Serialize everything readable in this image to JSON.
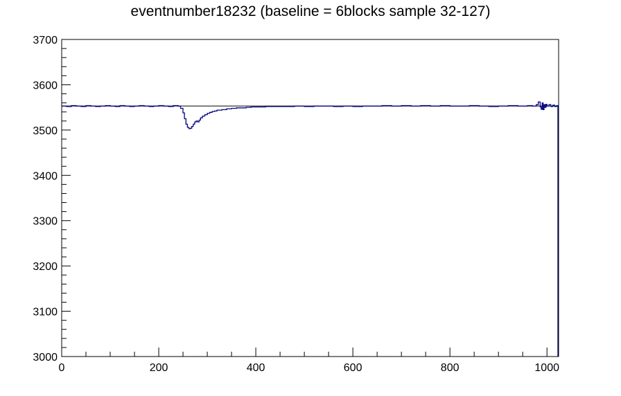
{
  "chart_data": {
    "type": "line",
    "title": "eventnumber18232 (baseline = 6blocks sample 32-127)",
    "xlabel": "",
    "ylabel": "",
    "xlim": [
      0,
      1024
    ],
    "ylim": [
      3000,
      3700
    ],
    "x_ticks": [
      0,
      200,
      400,
      600,
      800,
      1000
    ],
    "y_ticks": [
      3000,
      3100,
      3200,
      3300,
      3400,
      3500,
      3600,
      3700
    ],
    "x_tick_labels": [
      "0",
      "200",
      "400",
      "600",
      "800",
      "1000"
    ],
    "y_tick_labels": [
      "3000",
      "3100",
      "3200",
      "3300",
      "3400",
      "3500",
      "3600",
      "3700"
    ],
    "grid": false,
    "baseline": {
      "value": 3553,
      "color": "#000000"
    },
    "series": [
      {
        "color": "#000080",
        "x": [
          0,
          10,
          20,
          30,
          40,
          50,
          60,
          70,
          80,
          90,
          100,
          110,
          120,
          130,
          140,
          150,
          160,
          170,
          180,
          190,
          200,
          210,
          220,
          230,
          240,
          245,
          250,
          253,
          256,
          259,
          262,
          265,
          268,
          271,
          274,
          277,
          280,
          283,
          286,
          290,
          295,
          300,
          305,
          310,
          315,
          320,
          330,
          340,
          350,
          360,
          370,
          380,
          390,
          400,
          420,
          440,
          460,
          480,
          500,
          520,
          540,
          560,
          580,
          600,
          620,
          640,
          660,
          680,
          700,
          720,
          740,
          760,
          780,
          800,
          820,
          840,
          860,
          880,
          900,
          920,
          940,
          960,
          970,
          978,
          982,
          986,
          988,
          990,
          992,
          994,
          996,
          998,
          1000,
          1004,
          1008,
          1012,
          1016,
          1020,
          1023
        ],
        "values": [
          3553,
          3552,
          3554,
          3553,
          3552,
          3554,
          3553,
          3552,
          3553,
          3554,
          3553,
          3552,
          3554,
          3553,
          3552,
          3553,
          3554,
          3553,
          3552,
          3553,
          3554,
          3553,
          3552,
          3554,
          3553,
          3548,
          3538,
          3525,
          3513,
          3506,
          3503,
          3504,
          3508,
          3513,
          3518,
          3520,
          3518,
          3522,
          3527,
          3531,
          3534,
          3537,
          3539,
          3541,
          3542,
          3544,
          3545,
          3547,
          3548,
          3549,
          3549,
          3550,
          3551,
          3551,
          3552,
          3552,
          3552,
          3553,
          3552,
          3553,
          3553,
          3552,
          3553,
          3552,
          3553,
          3553,
          3554,
          3553,
          3554,
          3553,
          3554,
          3553,
          3554,
          3553,
          3553,
          3554,
          3553,
          3552,
          3553,
          3554,
          3553,
          3554,
          3553,
          3556,
          3562,
          3551,
          3546,
          3560,
          3545,
          3556,
          3550,
          3557,
          3553,
          3556,
          3552,
          3555,
          3552,
          3554,
          3553
        ]
      }
    ]
  }
}
